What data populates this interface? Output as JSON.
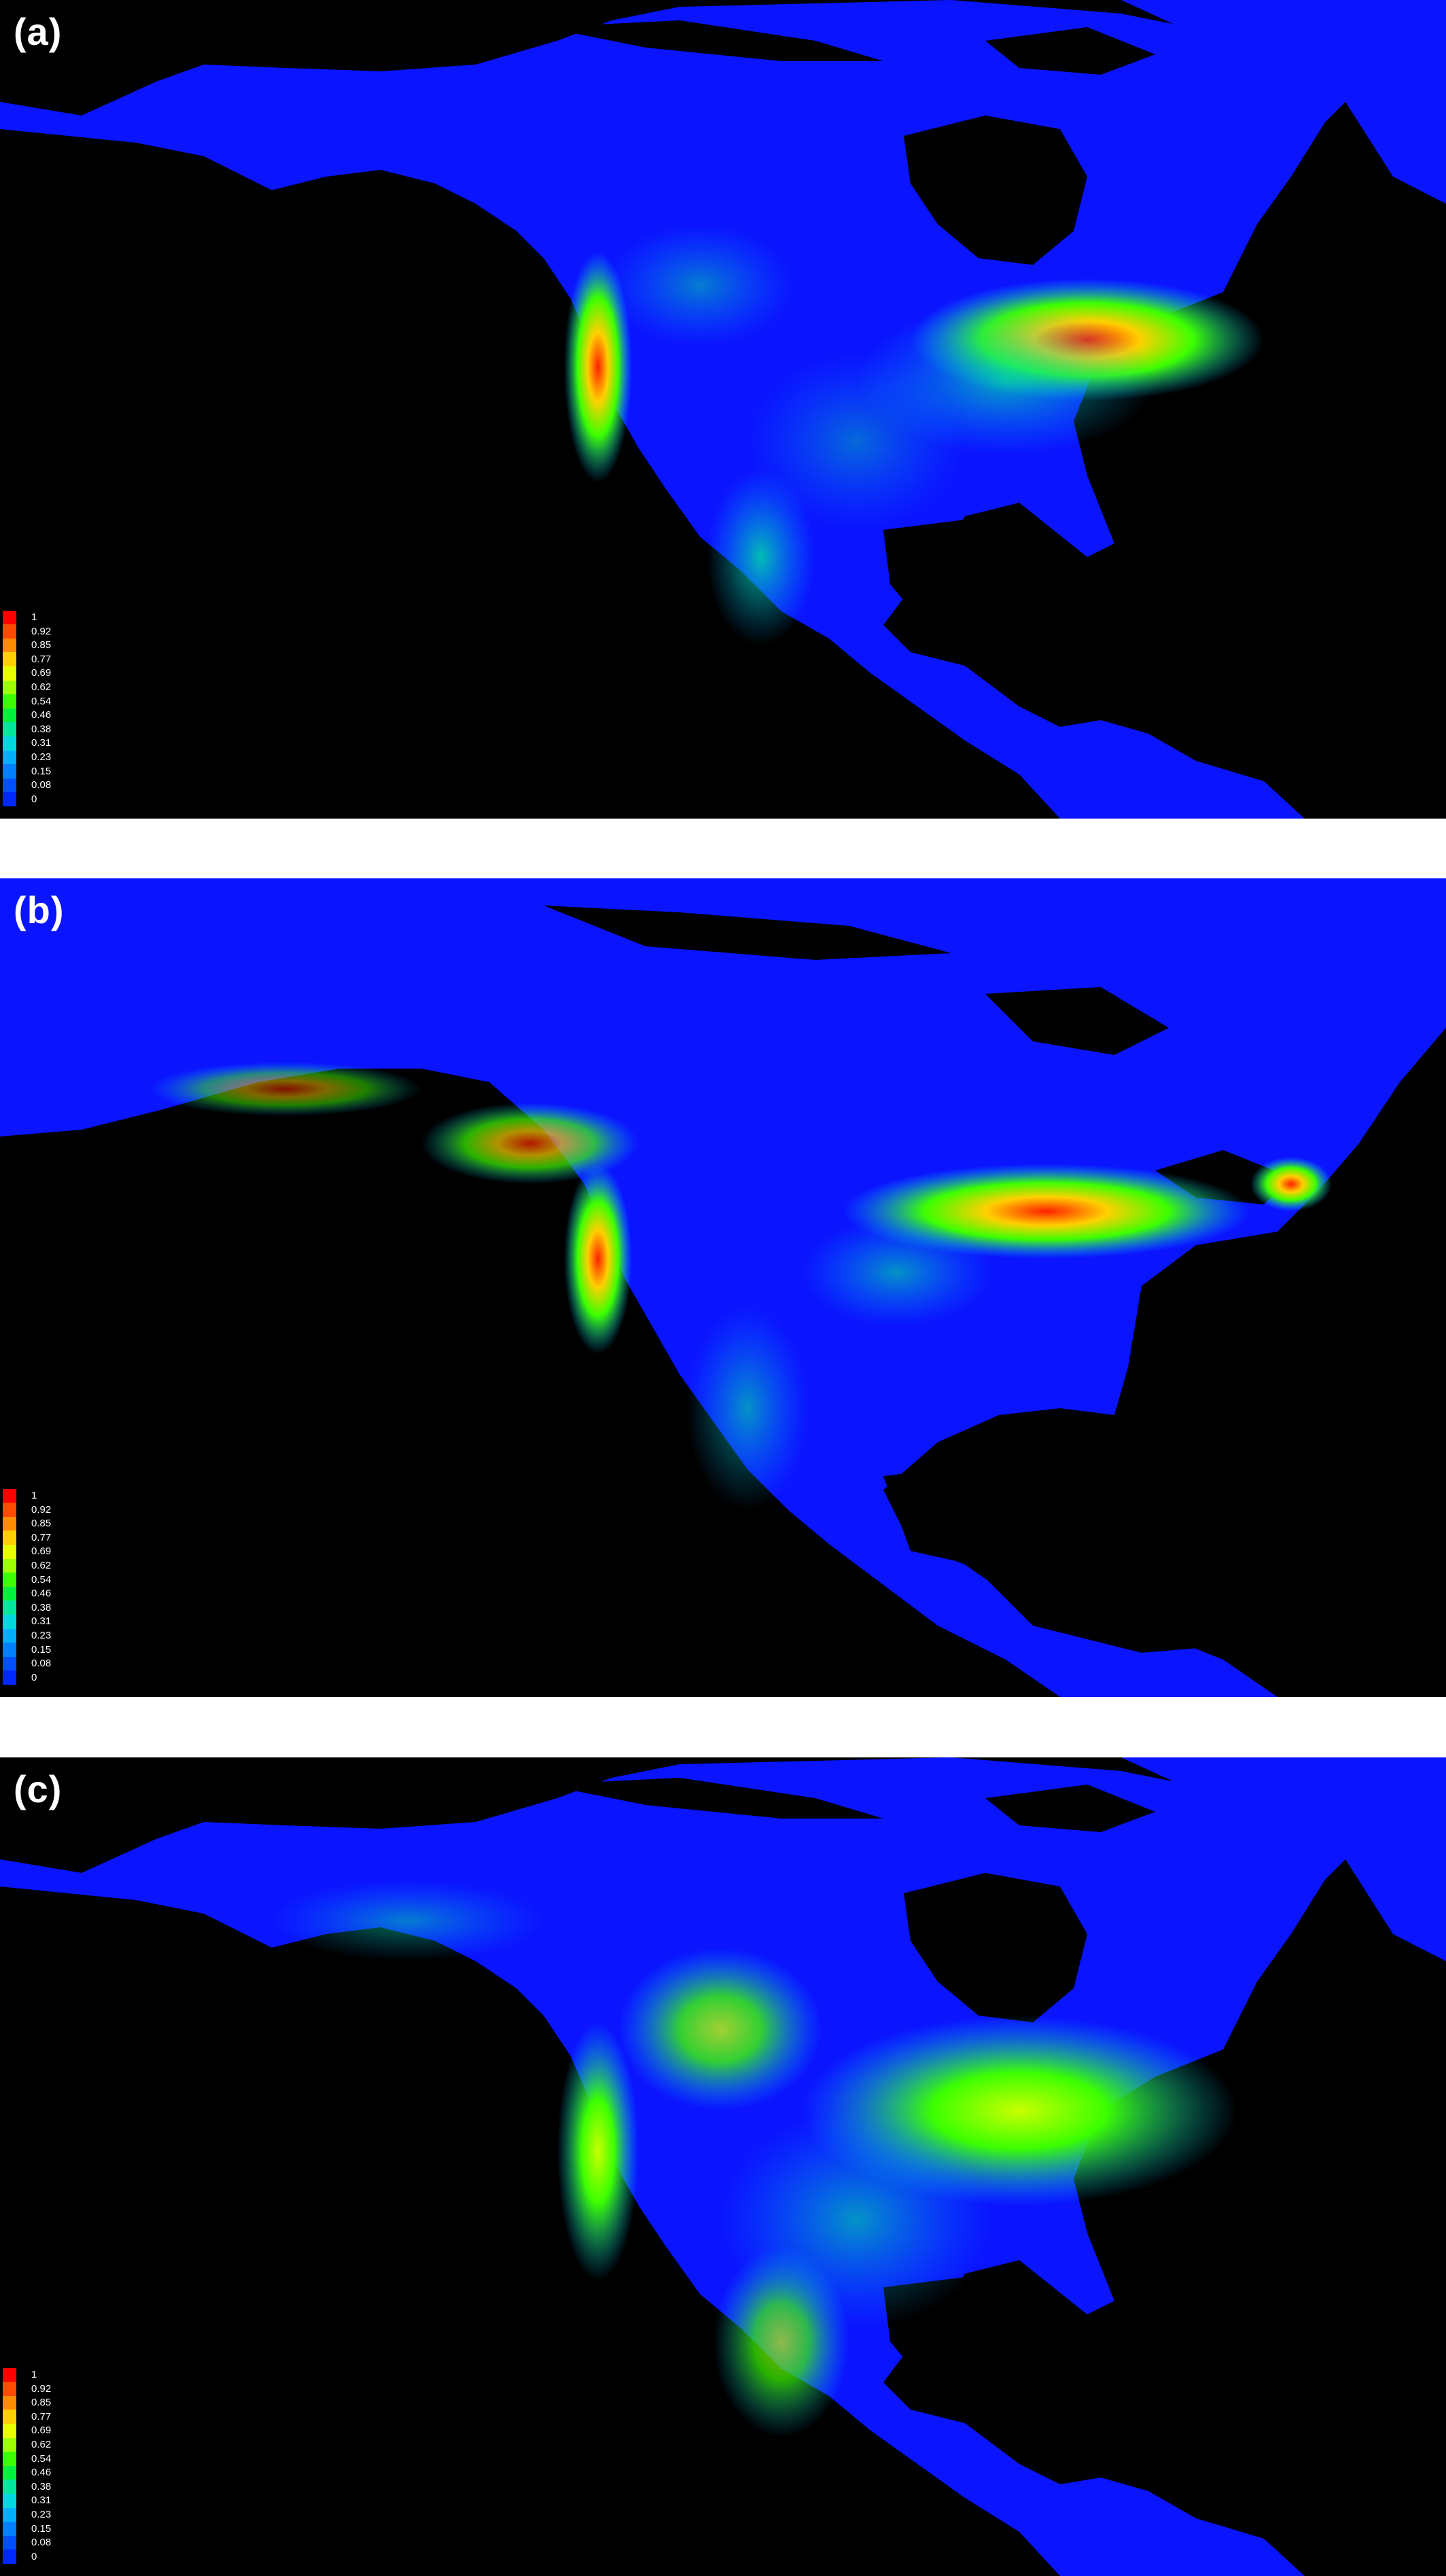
{
  "panels": [
    {
      "label": "(a)"
    },
    {
      "label": "(b)"
    },
    {
      "label": "(c)"
    }
  ],
  "legend": {
    "items": [
      {
        "label": "1",
        "color": "#ff0000"
      },
      {
        "label": "0.92",
        "color": "#ff4a00"
      },
      {
        "label": "0.85",
        "color": "#ff8c00"
      },
      {
        "label": "0.77",
        "color": "#ffd000"
      },
      {
        "label": "0.69",
        "color": "#e8ff00"
      },
      {
        "label": "0.62",
        "color": "#9cff00"
      },
      {
        "label": "0.54",
        "color": "#3cff00"
      },
      {
        "label": "0.46",
        "color": "#00f03c"
      },
      {
        "label": "0.38",
        "color": "#00e89c"
      },
      {
        "label": "0.31",
        "color": "#00d8e0"
      },
      {
        "label": "0.23",
        "color": "#00b0ff"
      },
      {
        "label": "0.15",
        "color": "#0080ff"
      },
      {
        "label": "0.08",
        "color": "#0050ff"
      },
      {
        "label": "0",
        "color": "#0028ff"
      }
    ]
  },
  "colors": {
    "ocean": "#000000",
    "land": "#0a14ff",
    "land_light": "#1a5cff"
  }
}
